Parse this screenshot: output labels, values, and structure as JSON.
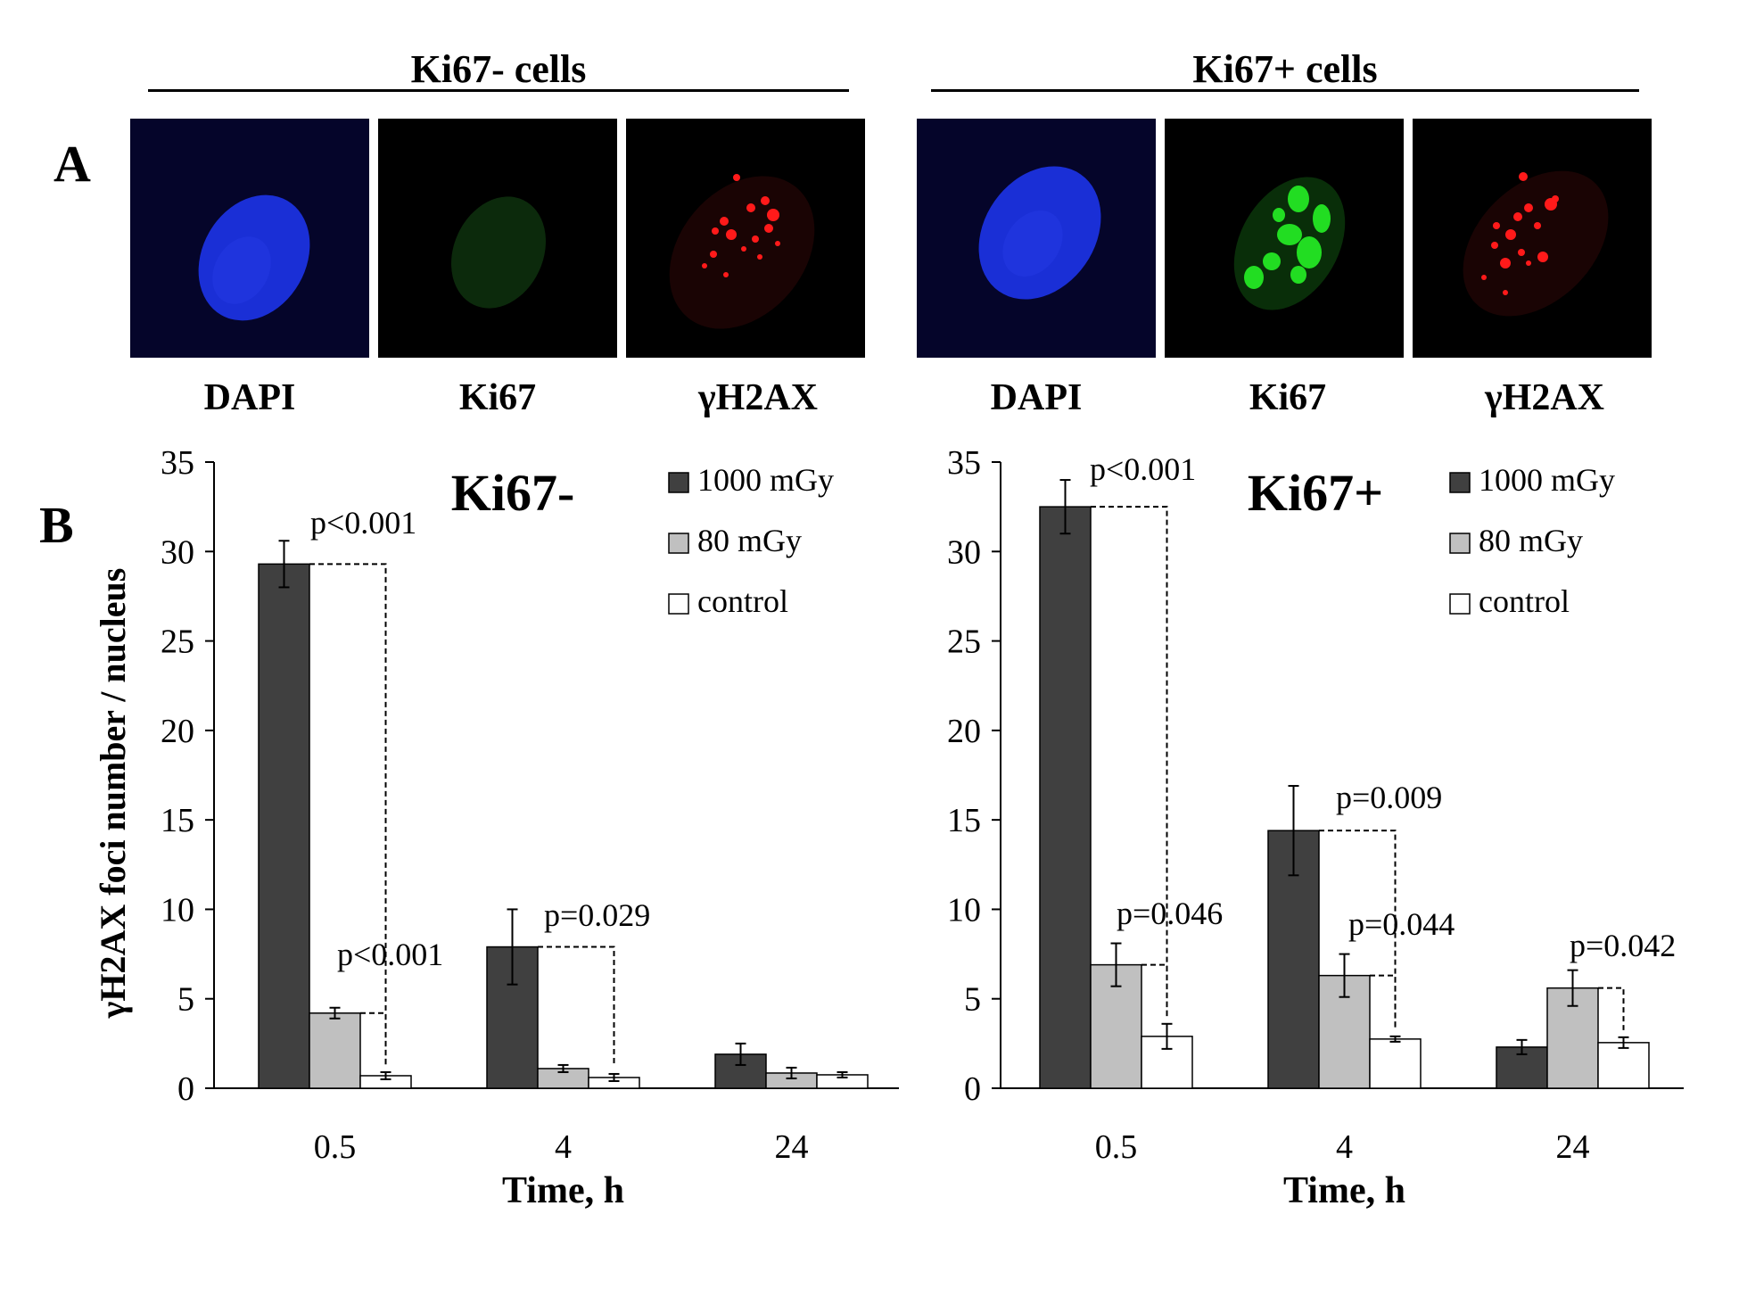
{
  "panel_labels": {
    "a": "A",
    "b": "B"
  },
  "microscopy": {
    "groups": [
      {
        "title": "Ki67- cells",
        "channels": [
          {
            "label": "DAPI",
            "icon": "dapi-nucleus-image",
            "color": "#1a2fd6"
          },
          {
            "label": "Ki67",
            "icon": "ki67-stain-image",
            "color": "#0c2a0c"
          },
          {
            "label": "γH2AX",
            "icon": "gh2ax-foci-image",
            "color": "#ff1a1a"
          }
        ]
      },
      {
        "title": "Ki67+ cells",
        "channels": [
          {
            "label": "DAPI",
            "icon": "dapi-nucleus-image",
            "color": "#1a2fd6"
          },
          {
            "label": "Ki67",
            "icon": "ki67-stain-image",
            "color": "#22dd22"
          },
          {
            "label": "γH2AX",
            "icon": "gh2ax-foci-image",
            "color": "#ff1a1a"
          }
        ]
      }
    ]
  },
  "ylabel": "γH2AX  foci number / nucleus",
  "chart_data": [
    {
      "type": "bar",
      "title": "Ki67-",
      "xlabel": "Time, h",
      "ylabel": "γH2AX  foci number / nucleus",
      "categories": [
        "0.5",
        "4",
        "24"
      ],
      "ylim": [
        0,
        35
      ],
      "yticks": [
        0,
        5,
        10,
        15,
        20,
        25,
        30,
        35
      ],
      "legend_position": "top-right",
      "series": [
        {
          "name": "1000 mGy",
          "color": "#404040",
          "values": [
            29.3,
            7.9,
            1.9
          ],
          "errors": [
            1.3,
            2.1,
            0.6
          ]
        },
        {
          "name": "80 mGy",
          "color": "#c0c0c0",
          "values": [
            4.2,
            1.1,
            0.85
          ],
          "errors": [
            0.3,
            0.2,
            0.3
          ]
        },
        {
          "name": "control",
          "color": "#ffffff",
          "values": [
            0.7,
            0.6,
            0.75
          ],
          "errors": [
            0.2,
            0.2,
            0.15
          ]
        }
      ],
      "annotations": [
        {
          "text": "p<0.001",
          "from": [
            0,
            0
          ],
          "to": [
            0,
            2
          ]
        },
        {
          "text": "p<0.001",
          "from": [
            0,
            1
          ],
          "to": [
            0,
            2
          ]
        },
        {
          "text": "p=0.029",
          "from": [
            1,
            0
          ],
          "to": [
            1,
            2
          ]
        }
      ]
    },
    {
      "type": "bar",
      "title": "Ki67+",
      "xlabel": "Time, h",
      "ylabel": "",
      "categories": [
        "0.5",
        "4",
        "24"
      ],
      "ylim": [
        0,
        35
      ],
      "yticks": [
        0,
        5,
        10,
        15,
        20,
        25,
        30,
        35
      ],
      "legend_position": "top-right",
      "series": [
        {
          "name": "1000 mGy",
          "color": "#404040",
          "values": [
            32.5,
            14.4,
            2.3
          ],
          "errors": [
            1.5,
            2.5,
            0.4
          ]
        },
        {
          "name": "80 mGy",
          "color": "#c0c0c0",
          "values": [
            6.9,
            6.3,
            5.6
          ],
          "errors": [
            1.2,
            1.2,
            1.0
          ]
        },
        {
          "name": "control",
          "color": "#ffffff",
          "values": [
            2.9,
            2.75,
            2.55
          ],
          "errors": [
            0.7,
            0.15,
            0.3
          ]
        }
      ],
      "annotations": [
        {
          "text": "p<0.001",
          "from": [
            0,
            0
          ],
          "to": [
            0,
            2
          ]
        },
        {
          "text": "p=0.046",
          "from": [
            0,
            1
          ],
          "to": [
            0,
            2
          ]
        },
        {
          "text": "p=0.009",
          "from": [
            1,
            0
          ],
          "to": [
            1,
            2
          ]
        },
        {
          "text": "p=0.044",
          "from": [
            1,
            1
          ],
          "to": [
            1,
            2
          ]
        },
        {
          "text": "p=0.042",
          "from": [
            2,
            1
          ],
          "to": [
            2,
            2
          ]
        }
      ]
    }
  ]
}
